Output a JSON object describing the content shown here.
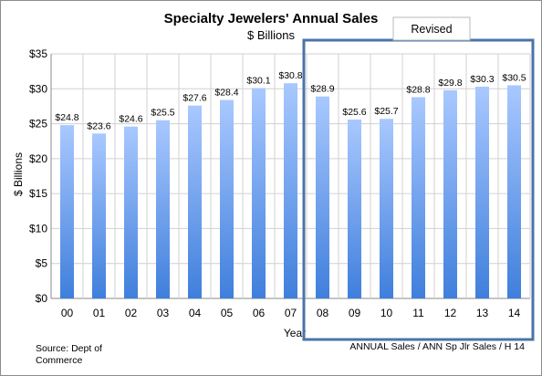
{
  "chart_data": {
    "type": "bar",
    "title": "Specialty Jewelers' Annual Sales",
    "subtitle": "$ Billions",
    "xlabel": "Year",
    "ylabel": "$ Billions",
    "ylim": [
      0,
      35
    ],
    "ytick_step": 5,
    "ytick_labels": [
      "$0",
      "$5",
      "$10",
      "$15",
      "$20",
      "$25",
      "$30",
      "$35"
    ],
    "grid": true,
    "categories": [
      "00",
      "01",
      "02",
      "03",
      "04",
      "05",
      "06",
      "07",
      "08",
      "09",
      "10",
      "11",
      "12",
      "13",
      "14"
    ],
    "values": [
      24.8,
      23.6,
      24.6,
      25.5,
      27.6,
      28.4,
      30.1,
      30.8,
      28.9,
      25.6,
      25.7,
      28.8,
      29.8,
      30.3,
      30.5
    ],
    "data_labels": [
      "$24.8",
      "$23.6",
      "$24.6",
      "$25.5",
      "$27.6",
      "$28.4",
      "$30.1",
      "$30.8",
      "$28.9",
      "$25.6",
      "$25.7",
      "$28.8",
      "$29.8",
      "$30.3",
      "$30.5"
    ],
    "bar_color_top": "#a9c8ff",
    "bar_color_bottom": "#3f7fdc",
    "highlight": {
      "label": "Revised",
      "from_category": "08",
      "to_category": "14",
      "border_color": "#4a74a8"
    }
  },
  "footer": {
    "source_line1": "Source:  Dept of",
    "source_line2": "Commerce",
    "code": "ANNUAL Sales / ANN Sp Jlr Sales / H 14"
  }
}
